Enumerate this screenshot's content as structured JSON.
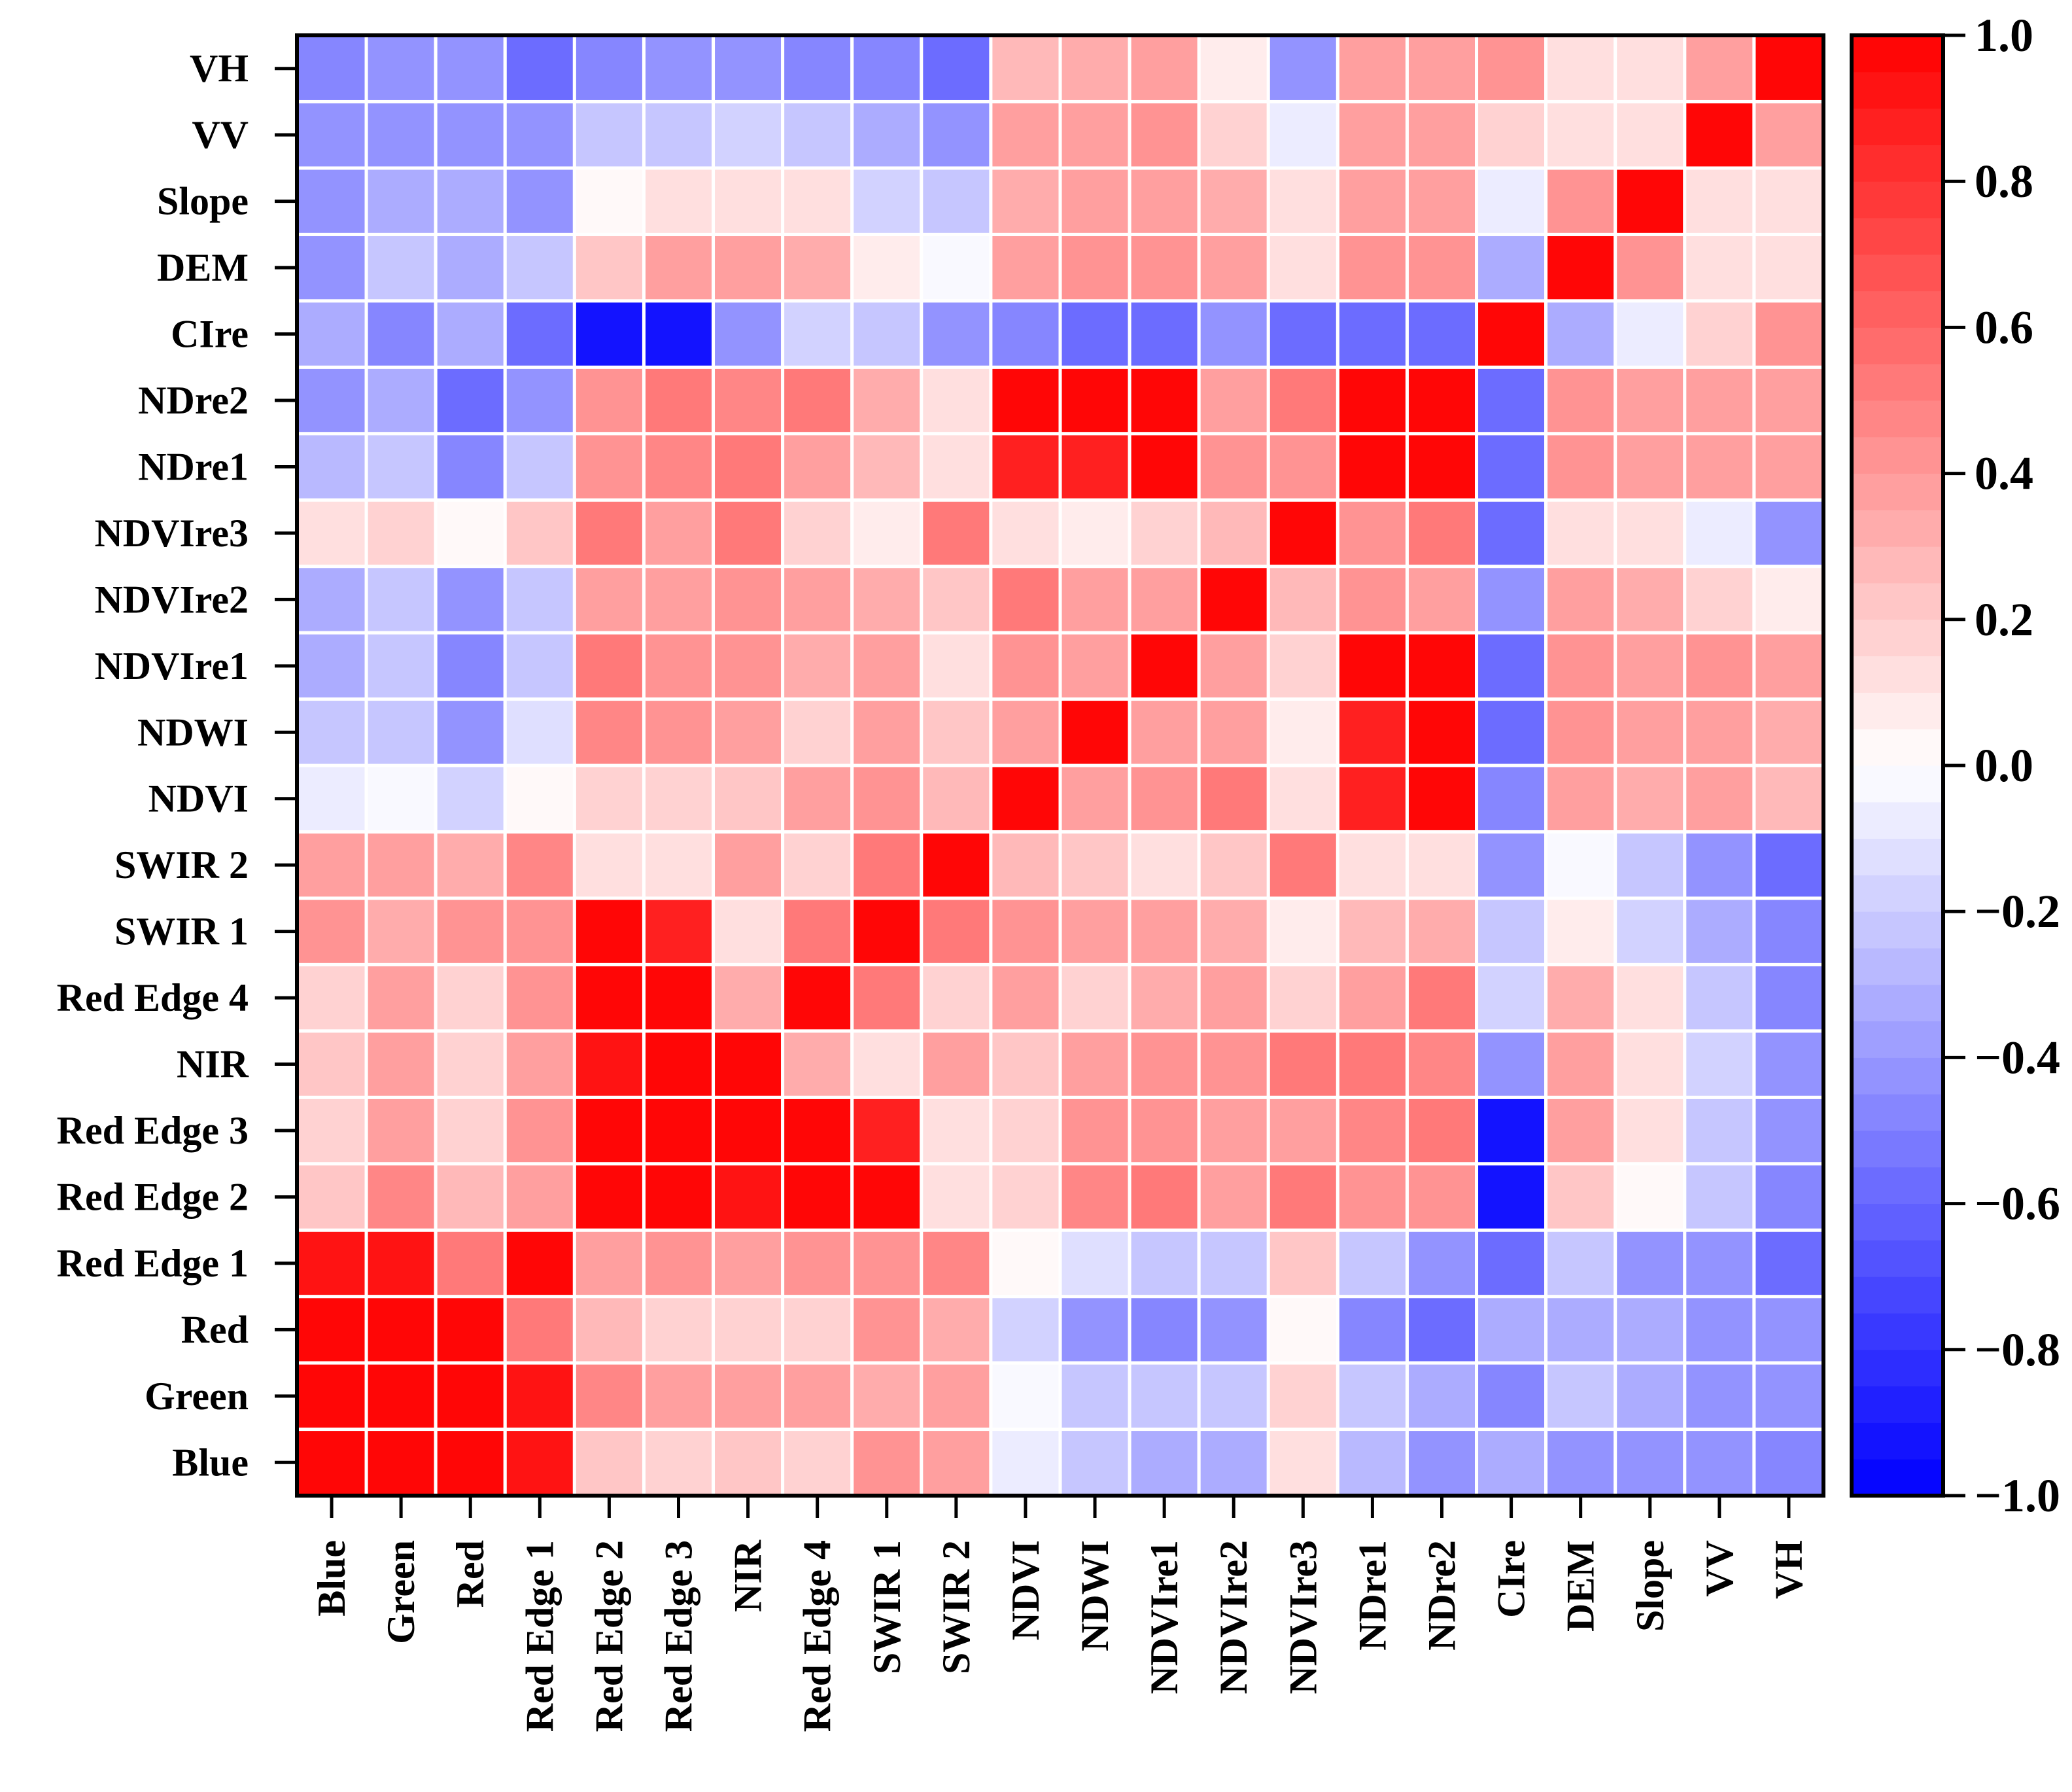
{
  "chart_data": {
    "type": "heatmap",
    "title": "",
    "xlabel": "",
    "ylabel": "",
    "variables": [
      "Blue",
      "Green",
      "Red",
      "Red Edge 1",
      "Red Edge 2",
      "Red Edge 3",
      "NIR",
      "Red Edge 4",
      "SWIR 1",
      "SWIR 2",
      "NDVI",
      "NDWI",
      "NDVIre1",
      "NDVIre2",
      "NDVIre3",
      "NDre1",
      "NDre2",
      "CIre",
      "DEM",
      "Slope",
      "VV",
      "VH"
    ],
    "row_order_note": "rows listed bottom (Blue) to top (VH)",
    "matrix": [
      [
        1.0,
        0.97,
        0.96,
        0.92,
        0.22,
        0.18,
        0.24,
        0.18,
        0.42,
        0.4,
        -0.1,
        -0.25,
        -0.3,
        -0.3,
        0.12,
        -0.28,
        -0.42,
        -0.3,
        -0.4,
        -0.42,
        -0.45,
        -0.5
      ],
      [
        0.97,
        1.0,
        0.98,
        0.92,
        0.48,
        0.4,
        0.38,
        0.35,
        0.3,
        0.38,
        -0.02,
        -0.25,
        -0.25,
        -0.25,
        0.2,
        -0.25,
        -0.3,
        -0.5,
        -0.25,
        -0.3,
        -0.45,
        -0.45
      ],
      [
        0.96,
        0.98,
        1.0,
        0.5,
        0.25,
        0.2,
        0.2,
        0.18,
        0.45,
        0.3,
        -0.2,
        -0.4,
        -0.5,
        -0.42,
        0.02,
        -0.48,
        -0.58,
        -0.3,
        -0.35,
        -0.35,
        -0.4,
        -0.45
      ],
      [
        0.92,
        0.92,
        0.5,
        1.0,
        0.35,
        0.42,
        0.4,
        0.42,
        0.45,
        0.48,
        0.03,
        -0.15,
        -0.22,
        -0.22,
        0.22,
        -0.25,
        -0.4,
        -0.55,
        -0.25,
        -0.4,
        -0.45,
        -0.55
      ],
      [
        0.22,
        0.48,
        0.25,
        0.35,
        1.0,
        0.98,
        0.92,
        0.97,
        0.98,
        0.12,
        0.2,
        0.48,
        0.5,
        0.35,
        0.52,
        0.42,
        0.42,
        -0.95,
        0.22,
        0.03,
        -0.22,
        -0.5
      ],
      [
        0.18,
        0.4,
        0.2,
        0.42,
        0.98,
        1.0,
        0.97,
        0.98,
        0.9,
        0.12,
        0.2,
        0.42,
        0.42,
        0.4,
        0.4,
        0.48,
        0.5,
        -0.95,
        0.35,
        0.1,
        -0.25,
        -0.45
      ],
      [
        0.24,
        0.38,
        0.2,
        0.4,
        0.92,
        0.97,
        1.0,
        0.3,
        0.1,
        0.35,
        0.22,
        0.35,
        0.45,
        0.45,
        0.5,
        0.5,
        0.48,
        -0.4,
        0.35,
        0.1,
        -0.2,
        -0.4
      ],
      [
        0.18,
        0.35,
        0.18,
        0.42,
        0.97,
        0.98,
        0.3,
        1.0,
        0.5,
        0.2,
        0.35,
        0.2,
        0.3,
        0.4,
        0.2,
        0.35,
        0.5,
        -0.2,
        0.3,
        0.1,
        -0.25,
        -0.5
      ],
      [
        0.42,
        0.3,
        0.45,
        0.45,
        0.98,
        0.9,
        0.1,
        0.5,
        1.0,
        0.52,
        0.45,
        0.35,
        0.35,
        0.32,
        0.08,
        0.25,
        0.3,
        -0.25,
        0.05,
        -0.2,
        -0.3,
        -0.5
      ],
      [
        0.4,
        0.38,
        0.3,
        0.48,
        0.12,
        0.12,
        0.35,
        0.2,
        0.52,
        1.0,
        0.25,
        0.22,
        0.15,
        0.22,
        0.52,
        0.15,
        0.1,
        -0.4,
        -0.02,
        -0.25,
        -0.4,
        -0.55
      ],
      [
        -0.1,
        -0.02,
        -0.2,
        0.03,
        0.2,
        0.2,
        0.22,
        0.35,
        0.45,
        0.25,
        1.0,
        0.35,
        0.45,
        0.5,
        0.15,
        0.88,
        0.95,
        -0.5,
        0.35,
        0.3,
        0.35,
        0.25
      ],
      [
        -0.25,
        -0.25,
        -0.4,
        -0.15,
        0.48,
        0.42,
        0.35,
        0.2,
        0.35,
        0.22,
        0.35,
        1.0,
        0.35,
        0.35,
        0.08,
        0.9,
        0.95,
        -0.6,
        0.45,
        0.35,
        0.35,
        0.3
      ],
      [
        -0.3,
        -0.25,
        -0.5,
        -0.22,
        0.5,
        0.42,
        0.45,
        0.3,
        0.35,
        0.15,
        0.45,
        0.35,
        1.0,
        0.35,
        0.2,
        0.98,
        0.98,
        -0.6,
        0.45,
        0.4,
        0.45,
        0.35
      ],
      [
        -0.3,
        -0.25,
        -0.42,
        -0.22,
        0.35,
        0.4,
        0.45,
        0.4,
        0.32,
        0.22,
        0.5,
        0.35,
        0.35,
        1.0,
        0.25,
        0.45,
        0.4,
        -0.45,
        0.35,
        0.3,
        0.2,
        0.08
      ],
      [
        0.12,
        0.2,
        0.02,
        0.22,
        0.52,
        0.4,
        0.5,
        0.2,
        0.08,
        0.52,
        0.15,
        0.08,
        0.2,
        0.25,
        1.0,
        0.45,
        0.52,
        -0.55,
        0.1,
        0.1,
        -0.1,
        -0.45
      ],
      [
        -0.28,
        -0.25,
        -0.48,
        -0.25,
        0.42,
        0.48,
        0.5,
        0.35,
        0.25,
        0.15,
        0.88,
        0.9,
        0.98,
        0.45,
        0.45,
        1.0,
        0.98,
        -0.55,
        0.45,
        0.4,
        0.4,
        0.35
      ],
      [
        -0.42,
        -0.3,
        -0.58,
        -0.4,
        0.42,
        0.5,
        0.48,
        0.5,
        0.3,
        0.1,
        0.95,
        0.95,
        0.98,
        0.4,
        0.52,
        0.98,
        1.0,
        -0.55,
        0.45,
        0.4,
        0.4,
        0.35
      ],
      [
        -0.3,
        -0.5,
        -0.3,
        -0.55,
        -0.95,
        -0.95,
        -0.4,
        -0.2,
        -0.25,
        -0.4,
        -0.5,
        -0.6,
        -0.6,
        -0.45,
        -0.55,
        -0.55,
        -0.55,
        1.0,
        -0.3,
        -0.1,
        0.2,
        0.45
      ],
      [
        -0.4,
        -0.25,
        -0.35,
        -0.25,
        0.22,
        0.35,
        0.35,
        0.3,
        0.05,
        -0.02,
        0.35,
        0.45,
        0.45,
        0.35,
        0.1,
        0.45,
        0.45,
        -0.3,
        1.0,
        0.45,
        0.15,
        0.15
      ],
      [
        -0.42,
        -0.3,
        -0.35,
        -0.4,
        0.03,
        0.1,
        0.1,
        0.1,
        -0.2,
        -0.25,
        0.3,
        0.35,
        0.4,
        0.3,
        0.1,
        0.4,
        0.4,
        -0.1,
        0.45,
        1.0,
        0.1,
        0.1
      ],
      [
        -0.45,
        -0.45,
        -0.4,
        -0.45,
        -0.22,
        -0.25,
        -0.2,
        -0.25,
        -0.3,
        -0.4,
        0.35,
        0.35,
        0.45,
        0.2,
        -0.1,
        0.4,
        0.4,
        0.2,
        0.15,
        0.1,
        1.0,
        0.4
      ],
      [
        -0.5,
        -0.45,
        -0.45,
        -0.55,
        -0.5,
        -0.45,
        -0.4,
        -0.5,
        -0.5,
        -0.55,
        0.25,
        0.3,
        0.35,
        0.08,
        -0.45,
        0.35,
        0.35,
        0.45,
        0.15,
        0.1,
        0.4,
        1.0
      ]
    ],
    "colorbar": {
      "min": -1.0,
      "max": 1.0,
      "tick_labels": [
        "1.0",
        "0.8",
        "0.6",
        "0.4",
        "0.2",
        "0.0",
        "−0.2",
        "−0.4",
        "−0.6",
        "−0.8",
        "−1.0"
      ],
      "tick_values": [
        1.0,
        0.8,
        0.6,
        0.4,
        0.2,
        0.0,
        -0.2,
        -0.4,
        -0.6,
        -0.8,
        -1.0
      ],
      "levels": 40,
      "low_color": "#0000ff",
      "mid_color": "#ffffff",
      "high_color": "#ff0000"
    }
  }
}
